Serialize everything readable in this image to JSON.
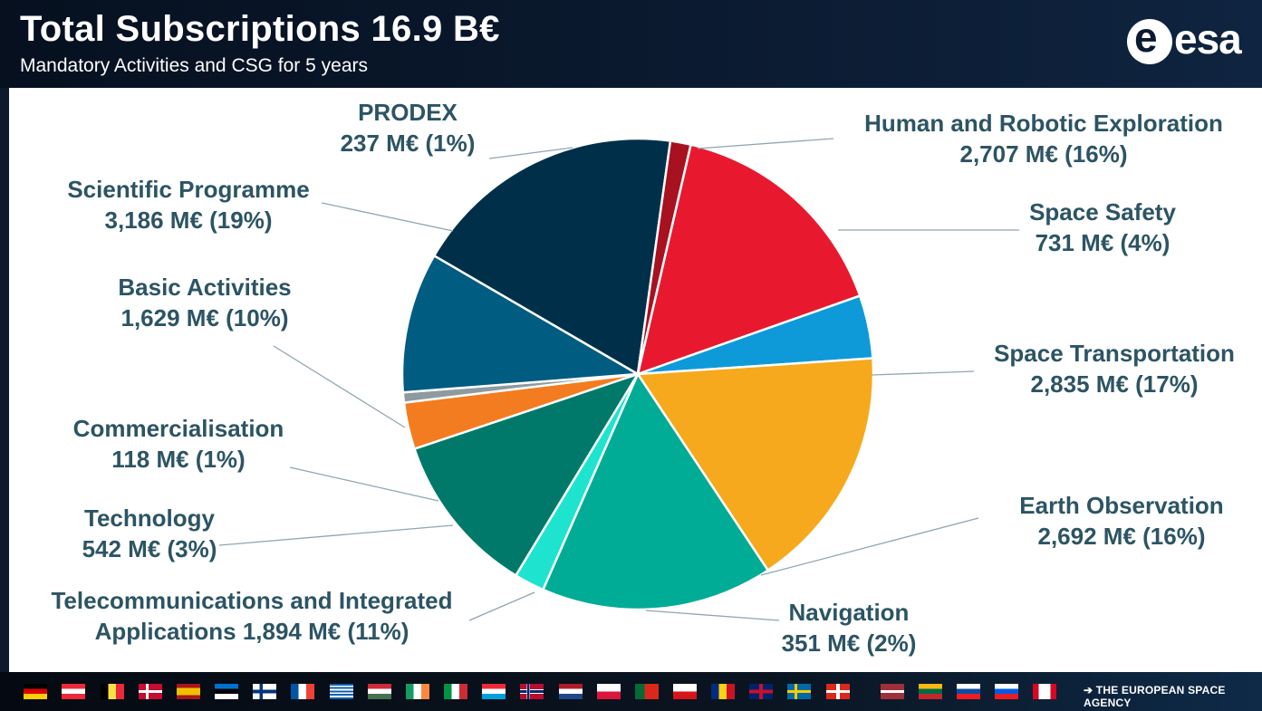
{
  "header": {
    "title": "Total Subscriptions 16.9 B€",
    "subtitle": "Mandatory Activities and CSG for 5 years",
    "logo_text": "esa"
  },
  "footer": {
    "agency_label": "THE EUROPEAN SPACE AGENCY",
    "flags": [
      "germany",
      "austria",
      "belgium",
      "denmark",
      "spain",
      "estonia",
      "finland",
      "france",
      "greece",
      "hungary",
      "ireland",
      "italy",
      "luxembourg",
      "norway",
      "netherlands",
      "poland",
      "portugal",
      "czechia",
      "romania",
      "united-kingdom",
      "sweden",
      "switzerland",
      "latvia",
      "lithuania",
      "slovakia",
      "slovenia",
      "canada"
    ]
  },
  "chart_data": {
    "type": "pie",
    "title": "Total Subscriptions 16.9 B€",
    "subtitle": "Mandatory Activities and CSG for 5 years",
    "unit": "M€",
    "slices": [
      {
        "id": "human",
        "name": "Human and Robotic Exploration",
        "value": 2707,
        "value_label": "2,707 M€",
        "percent_label": "(16%)",
        "color": "#e8192f"
      },
      {
        "id": "safety",
        "name": "Space Safety",
        "value": 731,
        "value_label": "731 M€",
        "percent_label": "(4%)",
        "color": "#0e9ad9"
      },
      {
        "id": "transport",
        "name": "Space Transportation",
        "value": 2835,
        "value_label": "2,835 M€",
        "percent_label": "(17%)",
        "color": "#f6a91c"
      },
      {
        "id": "earth",
        "name": "Earth Observation",
        "value": 2692,
        "value_label": "2,692 M€",
        "percent_label": "(16%)",
        "color": "#00ac96"
      },
      {
        "id": "navigation",
        "name": "Navigation",
        "value": 351,
        "value_label": "351 M€",
        "percent_label": "(2%)",
        "color": "#1ee3cf"
      },
      {
        "id": "telecom",
        "name": "Telecommunications and Integrated Applications",
        "value": 1894,
        "value_label": "1,894 M€",
        "percent_label": "(11%)",
        "color": "#00796a"
      },
      {
        "id": "technology",
        "name": "Technology",
        "value": 542,
        "value_label": "542 M€",
        "percent_label": "(3%)",
        "color": "#f47c20"
      },
      {
        "id": "commercial",
        "name": "Commercialisation",
        "value": 118,
        "value_label": "118 M€",
        "percent_label": "(1%)",
        "color": "#8e9aa0"
      },
      {
        "id": "basic",
        "name": "Basic Activities",
        "value": 1629,
        "value_label": "1,629 M€",
        "percent_label": "(10%)",
        "color": "#005c81"
      },
      {
        "id": "science",
        "name": "Scientific Programme",
        "value": 3186,
        "value_label": "3,186 M€",
        "percent_label": "(19%)",
        "color": "#003049"
      },
      {
        "id": "prodex",
        "name": "PRODEX",
        "value": 237,
        "value_label": "237 M€",
        "percent_label": "(1%)",
        "color": "#a8111f"
      }
    ]
  }
}
